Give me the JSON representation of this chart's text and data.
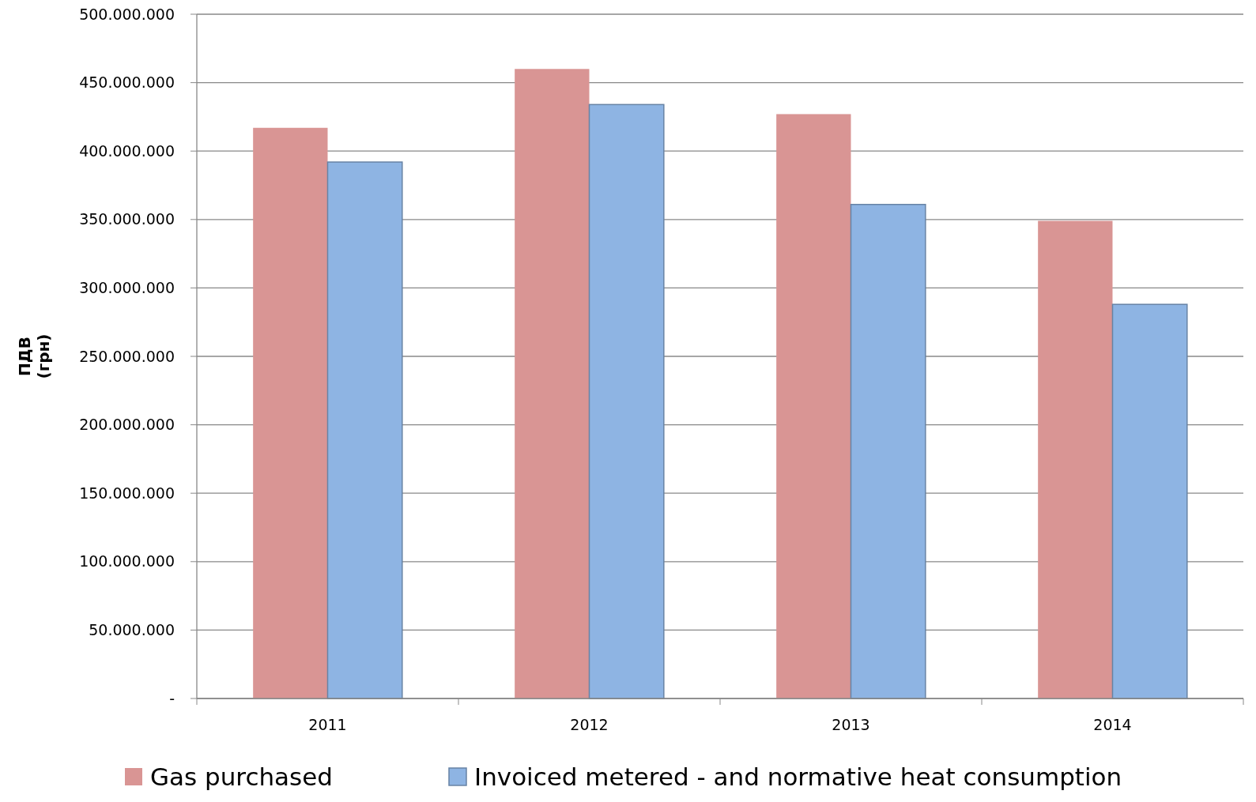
{
  "chart_data": {
    "type": "bar",
    "ylabel": "ПДВ\n(грн)",
    "categories": [
      "2011",
      "2012",
      "2013",
      "2014"
    ],
    "series": [
      {
        "name": "Gas purchased",
        "color": "#d99594",
        "values": [
          417000000,
          460000000,
          427000000,
          349000000
        ]
      },
      {
        "name": "Invoiced metered - and normative heat consumption",
        "color": "#8eb4e3",
        "values": [
          392000000,
          434000000,
          361000000,
          288000000
        ]
      }
    ],
    "ylim": [
      0,
      500000000
    ],
    "yticks": [
      {
        "value": 0,
        "label": "-"
      },
      {
        "value": 50000000,
        "label": "50.000.000"
      },
      {
        "value": 100000000,
        "label": "100.000.000"
      },
      {
        "value": 150000000,
        "label": "150.000.000"
      },
      {
        "value": 200000000,
        "label": "200.000.000"
      },
      {
        "value": 250000000,
        "label": "250.000.000"
      },
      {
        "value": 300000000,
        "label": "300.000.000"
      },
      {
        "value": 350000000,
        "label": "350.000.000"
      },
      {
        "value": 400000000,
        "label": "400.000.000"
      },
      {
        "value": 450000000,
        "label": "450.000.000"
      },
      {
        "value": 500000000,
        "label": "500.000.000"
      }
    ],
    "grid": "y",
    "legend": "bottom"
  }
}
